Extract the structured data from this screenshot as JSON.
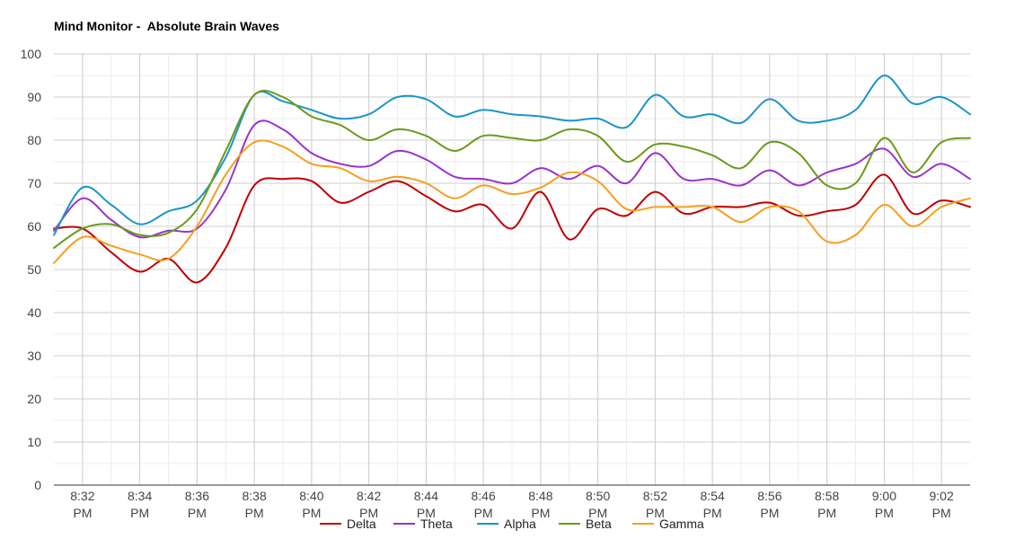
{
  "chart_data": {
    "type": "line",
    "title": "Mind Monitor -  Absolute Brain Waves",
    "xlabel": "",
    "ylabel": "",
    "ylim": [
      0,
      100
    ],
    "y_ticks": [
      0,
      10,
      20,
      30,
      40,
      50,
      60,
      70,
      80,
      90,
      100
    ],
    "x_ticks": [
      {
        "t": 2,
        "line1": "8:32",
        "line2": "PM"
      },
      {
        "t": 4,
        "line1": "8:34",
        "line2": "PM"
      },
      {
        "t": 6,
        "line1": "8:36",
        "line2": "PM"
      },
      {
        "t": 8,
        "line1": "8:38",
        "line2": "PM"
      },
      {
        "t": 10,
        "line1": "8:40",
        "line2": "PM"
      },
      {
        "t": 12,
        "line1": "8:42",
        "line2": "PM"
      },
      {
        "t": 14,
        "line1": "8:44",
        "line2": "PM"
      },
      {
        "t": 16,
        "line1": "8:46",
        "line2": "PM"
      },
      {
        "t": 18,
        "line1": "8:48",
        "line2": "PM"
      },
      {
        "t": 20,
        "line1": "8:50",
        "line2": "PM"
      },
      {
        "t": 22,
        "line1": "8:52",
        "line2": "PM"
      },
      {
        "t": 24,
        "line1": "8:54",
        "line2": "PM"
      },
      {
        "t": 26,
        "line1": "8:56",
        "line2": "PM"
      },
      {
        "t": 28,
        "line1": "8:58",
        "line2": "PM"
      },
      {
        "t": 30,
        "line1": "9:00",
        "line2": "PM"
      },
      {
        "t": 32,
        "line1": "9:02",
        "line2": "PM"
      }
    ],
    "xlim": [
      1,
      33
    ],
    "x": [
      1,
      2,
      3,
      4,
      5,
      6,
      7,
      8,
      9,
      10,
      11,
      12,
      13,
      14,
      15,
      16,
      17,
      18,
      19,
      20,
      21,
      22,
      23,
      24,
      25,
      26,
      27,
      28,
      29,
      30,
      31,
      32,
      33
    ],
    "grid": true,
    "legend": "bottom",
    "series": [
      {
        "name": "Delta",
        "color": "#c00000",
        "values": [
          59.5,
          59.5,
          54,
          49.5,
          52.5,
          47,
          55,
          69.5,
          71,
          70.5,
          65.5,
          68,
          70.5,
          67,
          63.5,
          65,
          59.5,
          68,
          57,
          64,
          62.5,
          68,
          63,
          64.5,
          64.5,
          65.5,
          62.5,
          63.5,
          65,
          72,
          63,
          66,
          64.5
        ]
      },
      {
        "name": "Theta",
        "color": "#9933cc",
        "values": [
          59,
          66.5,
          61.5,
          57.5,
          59,
          59.5,
          68.5,
          83.5,
          82.5,
          77,
          74.5,
          74,
          77.5,
          75.5,
          71.5,
          71,
          70,
          73.5,
          71,
          74,
          70,
          77,
          71,
          71,
          69.5,
          73,
          69.5,
          72.5,
          74.5,
          78,
          71.5,
          74.5,
          71
        ]
      },
      {
        "name": "Alpha",
        "color": "#1a95c8",
        "values": [
          58,
          69,
          65,
          60.5,
          63.5,
          66,
          76,
          90.5,
          89,
          87,
          85,
          86,
          90,
          89.5,
          85.5,
          87,
          86,
          85.5,
          84.5,
          85,
          83,
          90.5,
          85.5,
          86,
          84,
          89.5,
          84.5,
          84.5,
          87,
          95,
          88.5,
          90,
          86
        ]
      },
      {
        "name": "Beta",
        "color": "#6b9a1c",
        "values": [
          55,
          59.5,
          60.5,
          58,
          58.5,
          64,
          77.5,
          90.5,
          90,
          85.5,
          83.5,
          80,
          82.5,
          81,
          77.5,
          81,
          80.5,
          80,
          82.5,
          81,
          75,
          79,
          78.5,
          76.5,
          73.5,
          79.5,
          77,
          69.5,
          70,
          80.5,
          72.5,
          79.5,
          80.5
        ]
      },
      {
        "name": "Gamma",
        "color": "#f59f1f",
        "values": [
          51.5,
          57.5,
          55.5,
          53.5,
          52.5,
          60,
          72,
          79.5,
          78.5,
          74.5,
          73.5,
          70.5,
          71.5,
          70,
          66.5,
          69.5,
          67.5,
          69,
          72.5,
          70.5,
          64,
          64.5,
          64.5,
          64.5,
          61,
          64.5,
          63.5,
          56.5,
          58,
          65,
          60,
          64.5,
          66.5
        ]
      }
    ]
  }
}
